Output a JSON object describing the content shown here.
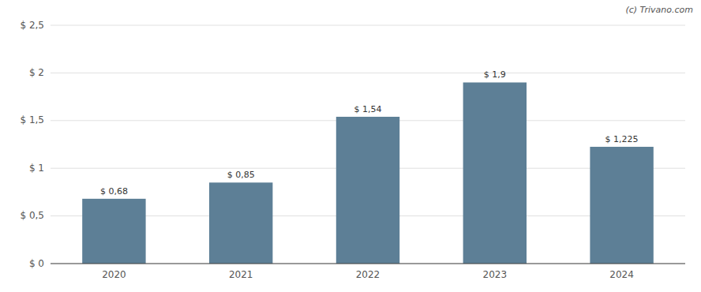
{
  "chart_data": {
    "type": "bar",
    "categories": [
      "2020",
      "2021",
      "2022",
      "2023",
      "2024"
    ],
    "values": [
      0.68,
      0.85,
      1.54,
      1.9,
      1.225
    ],
    "value_labels": [
      "$ 0,68",
      "$ 0,85",
      "$ 1,54",
      "$ 1,9",
      "$ 1,225"
    ],
    "color": "#5d7f96",
    "ylim": [
      0,
      2.5
    ],
    "yticks": [
      {
        "value": 0,
        "label": "$ 0"
      },
      {
        "value": 0.5,
        "label": "$ 0,5"
      },
      {
        "value": 1.0,
        "label": "$ 1"
      },
      {
        "value": 1.5,
        "label": "$ 1,5"
      },
      {
        "value": 2.0,
        "label": "$ 2"
      },
      {
        "value": 2.5,
        "label": "$ 2,5"
      }
    ],
    "grid": true,
    "data_labels": true,
    "annotations": [
      "(c) Trivano.com"
    ]
  }
}
